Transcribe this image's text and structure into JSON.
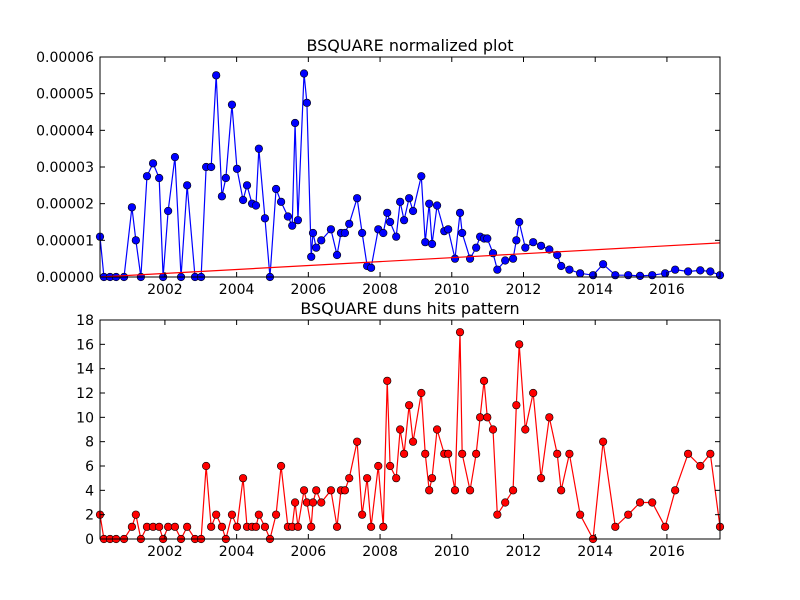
{
  "chart_data": [
    {
      "type": "line",
      "title": "BSQUARE normalized plot",
      "x": [
        2000.19,
        2000.3,
        2000.47,
        2000.64,
        2000.86,
        2001.08,
        2001.19,
        2001.33,
        2001.5,
        2001.67,
        2001.84,
        2001.95,
        2002.09,
        2002.28,
        2002.45,
        2002.62,
        2002.84,
        2003.01,
        2003.15,
        2003.29,
        2003.43,
        2003.59,
        2003.7,
        2003.87,
        2004.01,
        2004.18,
        2004.29,
        2004.43,
        2004.54,
        2004.62,
        2004.79,
        2004.93,
        2005.1,
        2005.24,
        2005.43,
        2005.55,
        2005.63,
        2005.71,
        2005.88,
        2005.96,
        2006.08,
        2006.13,
        2006.22,
        2006.36,
        2006.63,
        2006.8,
        2006.91,
        2007.02,
        2007.14,
        2007.36,
        2007.5,
        2007.64,
        2007.75,
        2007.95,
        2008.09,
        2008.2,
        2008.28,
        2008.45,
        2008.56,
        2008.67,
        2008.81,
        2008.92,
        2009.15,
        2009.26,
        2009.37,
        2009.45,
        2009.59,
        2009.79,
        2009.9,
        2010.09,
        2010.23,
        2010.29,
        2010.51,
        2010.68,
        2010.79,
        2010.9,
        2010.99,
        2011.15,
        2011.27,
        2011.49,
        2011.71,
        2011.8,
        2011.88,
        2012.05,
        2012.27,
        2012.49,
        2012.72,
        2012.94,
        2013.05,
        2013.28,
        2013.58,
        2013.94,
        2014.22,
        2014.56,
        2014.92,
        2015.25,
        2015.59,
        2015.95,
        2016.23,
        2016.59,
        2016.93,
        2017.21,
        2017.48
      ],
      "series": [
        {
          "color": "#0000ff",
          "marker": "o",
          "values": [
            1.1e-05,
            0,
            0,
            0,
            0,
            1.9e-05,
            1e-05,
            0,
            2.75e-05,
            3.1e-05,
            2.7e-05,
            0,
            1.8e-05,
            3.27e-05,
            0,
            2.5e-05,
            0,
            0,
            3e-05,
            3e-05,
            5.5e-05,
            2.2e-05,
            2.7e-05,
            4.7e-05,
            2.95e-05,
            2.1e-05,
            2.5e-05,
            2e-05,
            1.95e-05,
            3.5e-05,
            1.6e-05,
            0,
            2.4e-05,
            2.05e-05,
            1.65e-05,
            1.4e-05,
            4.2e-05,
            1.55e-05,
            5.55e-05,
            4.75e-05,
            5.5e-06,
            1.2e-05,
            8e-06,
            1e-05,
            1.3e-05,
            6e-06,
            1.2e-05,
            1.2e-05,
            1.45e-05,
            2.15e-05,
            1.2e-05,
            3e-06,
            2.5e-06,
            1.3e-05,
            1.2e-05,
            1.75e-05,
            1.5e-05,
            1.1e-05,
            2.05e-05,
            1.55e-05,
            2.15e-05,
            1.8e-05,
            2.75e-05,
            9.5e-06,
            2e-05,
            9e-06,
            1.95e-05,
            1.25e-05,
            1.3e-05,
            5e-06,
            1.75e-05,
            1.2e-05,
            5e-06,
            8e-06,
            1.1e-05,
            1.05e-05,
            1.05e-05,
            6.5e-06,
            2e-06,
            4.5e-06,
            5e-06,
            1e-05,
            1.5e-05,
            8e-06,
            9.5e-06,
            8.5e-06,
            7.5e-06,
            6e-06,
            3e-06,
            2e-06,
            1e-06,
            5e-07,
            3.5e-06,
            5e-07,
            5e-07,
            3e-07,
            5e-07,
            1e-06,
            2e-06,
            1.5e-06,
            1.8e-06,
            1.5e-06,
            5e-07
          ]
        },
        {
          "color": "#ff0000",
          "x": [
            2000.19,
            2017.48
          ],
          "values": [
            0,
            9.3e-06
          ]
        }
      ],
      "xlim": [
        2000.19,
        2017.48
      ],
      "xticks": [
        2002,
        2004,
        2006,
        2008,
        2010,
        2012,
        2014,
        2016
      ],
      "ylim": [
        0,
        6e-05
      ],
      "yticks": [
        {
          "value": 0,
          "label": "0.00000"
        },
        {
          "value": 1e-05,
          "label": "0.00001"
        },
        {
          "value": 2e-05,
          "label": "0.00002"
        },
        {
          "value": 3e-05,
          "label": "0.00003"
        },
        {
          "value": 4e-05,
          "label": "0.00004"
        },
        {
          "value": 5e-05,
          "label": "0.00005"
        },
        {
          "value": 6e-05,
          "label": "0.00006"
        }
      ]
    },
    {
      "type": "line",
      "title": "BSQUARE duns hits pattern",
      "x": [
        2000.19,
        2000.3,
        2000.47,
        2000.64,
        2000.86,
        2001.08,
        2001.19,
        2001.33,
        2001.5,
        2001.67,
        2001.84,
        2001.95,
        2002.09,
        2002.28,
        2002.45,
        2002.62,
        2002.84,
        2003.01,
        2003.15,
        2003.29,
        2003.43,
        2003.59,
        2003.7,
        2003.87,
        2004.01,
        2004.18,
        2004.29,
        2004.43,
        2004.54,
        2004.62,
        2004.79,
        2004.93,
        2005.1,
        2005.24,
        2005.43,
        2005.55,
        2005.63,
        2005.71,
        2005.88,
        2005.96,
        2006.08,
        2006.13,
        2006.22,
        2006.36,
        2006.63,
        2006.8,
        2006.91,
        2007.02,
        2007.14,
        2007.36,
        2007.5,
        2007.64,
        2007.75,
        2007.95,
        2008.09,
        2008.2,
        2008.28,
        2008.45,
        2008.56,
        2008.67,
        2008.81,
        2008.92,
        2009.15,
        2009.26,
        2009.37,
        2009.45,
        2009.59,
        2009.79,
        2009.9,
        2010.09,
        2010.23,
        2010.29,
        2010.51,
        2010.68,
        2010.79,
        2010.9,
        2010.99,
        2011.15,
        2011.27,
        2011.49,
        2011.71,
        2011.8,
        2011.88,
        2012.05,
        2012.27,
        2012.49,
        2012.72,
        2012.94,
        2013.05,
        2013.28,
        2013.58,
        2013.94,
        2014.22,
        2014.56,
        2014.92,
        2015.25,
        2015.59,
        2015.95,
        2016.23,
        2016.59,
        2016.93,
        2017.21,
        2017.48
      ],
      "series": [
        {
          "color": "#ff0000",
          "marker": "o",
          "values": [
            2,
            0,
            0,
            0,
            0,
            1,
            2,
            0,
            1,
            1,
            1,
            0,
            1,
            1,
            0,
            1,
            0,
            0,
            6,
            1,
            2,
            1,
            0,
            2,
            1,
            5,
            1,
            1,
            1,
            2,
            1,
            0,
            2,
            6,
            1,
            1,
            3,
            1,
            4,
            3,
            1,
            3,
            4,
            3,
            4,
            1,
            4,
            4,
            5,
            8,
            2,
            5,
            1,
            6,
            1,
            13,
            6,
            5,
            9,
            7,
            11,
            8,
            12,
            7,
            4,
            5,
            9,
            7,
            7,
            4,
            17,
            7,
            4,
            7,
            10,
            13,
            10,
            9,
            2,
            3,
            4,
            11,
            16,
            9,
            12,
            5,
            10,
            7,
            4,
            7,
            2,
            0,
            8,
            1,
            2,
            3,
            3,
            1,
            4,
            7,
            6,
            7,
            1
          ]
        }
      ],
      "xlim": [
        2000.19,
        2017.48
      ],
      "xticks": [
        2002,
        2004,
        2006,
        2008,
        2010,
        2012,
        2014,
        2016
      ],
      "ylim": [
        0,
        18
      ],
      "yticks": [
        0,
        2,
        4,
        6,
        8,
        10,
        12,
        14,
        16,
        18
      ]
    }
  ]
}
